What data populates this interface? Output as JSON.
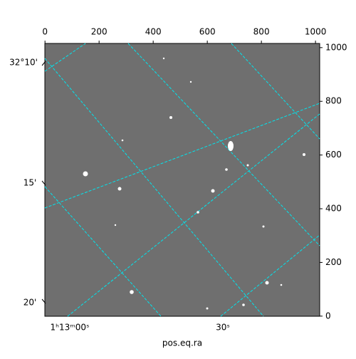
{
  "chart_data": {
    "type": "image",
    "xlabel": "pos.eq.ra",
    "xlim": [
      -0.5,
      1015.5
    ],
    "xticks": [
      0,
      200,
      400,
      600,
      800,
      1000
    ],
    "ylim": [
      -0.5,
      1015.5
    ],
    "yticks": [
      0,
      200,
      400,
      600,
      800,
      1000
    ],
    "dec_tick_labels": [
      "32°10'",
      "15'",
      "20'"
    ],
    "ra_tick_labels": [
      "1ʰ13ᵐ00ˢ",
      "30ˢ"
    ]
  }
}
